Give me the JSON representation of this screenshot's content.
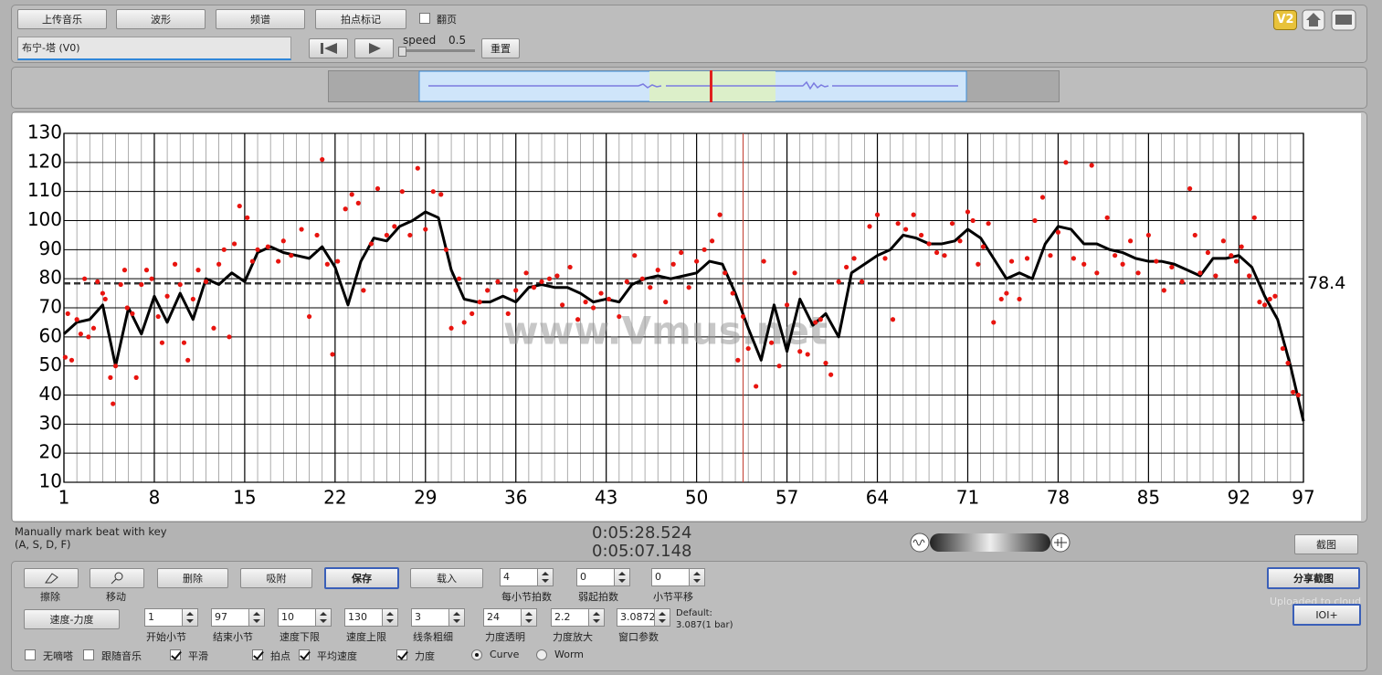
{
  "toolbar": {
    "buttons": [
      "上传音乐",
      "波形",
      "频谱",
      "拍点标记"
    ],
    "page_turn": "翻页",
    "track": "布宁-塔 (V0)",
    "speed_label": "speed",
    "speed": 0.5,
    "reset": "重置",
    "version": "V2"
  },
  "chart_data": {
    "type": "line",
    "xlim": [
      1,
      97
    ],
    "xticks": [
      1,
      8,
      15,
      22,
      29,
      36,
      43,
      50,
      57,
      64,
      71,
      78,
      85,
      92,
      97
    ],
    "xminorticks": [
      1,
      2,
      3,
      4,
      5,
      6,
      7,
      8,
      9,
      10,
      11,
      12,
      13,
      14,
      15,
      16,
      17,
      18,
      19,
      20,
      21,
      22,
      23,
      24,
      25,
      26,
      27,
      28,
      29,
      30,
      31,
      32,
      33,
      34,
      35,
      36,
      37,
      38,
      39,
      40,
      41,
      42,
      43,
      44,
      45,
      46,
      47,
      48,
      49,
      50,
      51,
      52,
      53,
      54,
      55,
      56,
      57,
      58,
      59,
      60,
      61,
      62,
      63,
      64,
      65,
      66,
      67,
      68,
      69,
      70,
      71,
      72,
      73,
      74,
      75,
      76,
      77,
      78,
      79,
      80,
      81,
      82,
      83,
      84,
      85,
      86,
      87,
      88,
      89,
      90,
      91,
      92,
      93,
      94,
      95,
      96,
      97
    ],
    "ylim": [
      10,
      130
    ],
    "yticks": [
      10,
      20,
      30,
      40,
      50,
      60,
      70,
      80,
      90,
      100,
      110,
      120,
      130
    ],
    "mean": 78.4,
    "cursor": 53.6,
    "watermark": "www.Vmus.net",
    "series": [
      {
        "type": "line",
        "color": "#000000",
        "x": [
          1,
          2,
          3,
          4,
          5,
          6,
          7,
          8,
          9,
          10,
          11,
          12,
          13,
          14,
          15,
          16,
          17,
          18,
          19,
          20,
          21,
          22,
          23,
          24,
          25,
          26,
          27,
          28,
          29,
          30,
          31,
          32,
          33,
          34,
          35,
          36,
          37,
          38,
          39,
          40,
          41,
          42,
          43,
          44,
          45,
          46,
          47,
          48,
          49,
          50,
          51,
          52,
          53,
          54,
          55,
          56,
          57,
          58,
          59,
          60,
          61,
          62,
          63,
          64,
          65,
          66,
          67,
          68,
          69,
          70,
          71,
          72,
          73,
          74,
          75,
          76,
          77,
          78,
          79,
          80,
          81,
          82,
          83,
          84,
          85,
          86,
          87,
          88,
          89,
          90,
          91,
          92,
          93,
          94,
          95,
          96,
          97
        ],
        "values": [
          61,
          65,
          66,
          71,
          50,
          70,
          61,
          74,
          65,
          75,
          66,
          80,
          78,
          82,
          79,
          89,
          91,
          89,
          88,
          87,
          91,
          84,
          71,
          86,
          94,
          93,
          98,
          100,
          103,
          101,
          83,
          73,
          72,
          72,
          74,
          72,
          77,
          78,
          77,
          77,
          75,
          72,
          73,
          72,
          78,
          80,
          81,
          80,
          81,
          82,
          86,
          85,
          75,
          63,
          52,
          71,
          55,
          73,
          64,
          68,
          60,
          82,
          85,
          88,
          90,
          95,
          94,
          92,
          92,
          93,
          97,
          94,
          87,
          80,
          82,
          80,
          92,
          98,
          97,
          92,
          92,
          90,
          89,
          87,
          86,
          86,
          85,
          83,
          81,
          87,
          87,
          88,
          84,
          74,
          66,
          50,
          31
        ]
      },
      {
        "type": "scatter",
        "color": "#e8140f",
        "x": [
          1.1,
          1.3,
          1.6,
          2,
          2.3,
          2.6,
          2.9,
          3.3,
          3.6,
          4,
          4.2,
          4.6,
          4.8,
          5,
          5.4,
          5.7,
          5.9,
          6.3,
          6.6,
          7,
          7.4,
          7.8,
          8.3,
          8.6,
          9,
          9.6,
          10,
          10.3,
          10.6,
          11,
          11.4,
          12,
          12.6,
          13,
          13.4,
          13.8,
          14.2,
          14.6,
          15.2,
          15.6,
          16,
          16.8,
          17.6,
          18,
          18.6,
          19.4,
          20,
          20.6,
          21,
          21.4,
          21.8,
          22.2,
          22.8,
          23.3,
          23.8,
          24.2,
          24.8,
          25.3,
          26,
          26.6,
          27.2,
          27.8,
          28.4,
          29,
          29.6,
          30.2,
          30.6,
          31,
          31.6,
          32,
          32.6,
          33.2,
          33.8,
          34.6,
          35.4,
          36,
          36.8,
          37.4,
          38,
          38.6,
          39.2,
          39.6,
          40.2,
          40.8,
          41.4,
          42,
          42.6,
          43.2,
          44,
          44.6,
          45.2,
          45.8,
          46.4,
          47,
          47.6,
          48.2,
          48.8,
          49.4,
          50,
          50.6,
          51.2,
          51.8,
          52.2,
          52.8,
          53.2,
          53.6,
          54,
          54.6,
          55.2,
          55.8,
          56.4,
          57,
          57.6,
          58,
          58.6,
          59.2,
          59.6,
          60,
          60.4,
          61,
          61.6,
          62.2,
          62.8,
          63.4,
          64,
          64.6,
          65.2,
          65.6,
          66.2,
          66.8,
          67.4,
          68,
          68.6,
          69.2,
          69.8,
          70.4,
          71,
          71.4,
          71.8,
          72.2,
          72.6,
          73,
          73.6,
          74,
          74.4,
          75,
          75.6,
          76.2,
          76.8,
          77.4,
          78,
          78.6,
          79.2,
          80,
          80.6,
          81,
          81.8,
          82.4,
          83,
          83.6,
          84.2,
          85,
          85.6,
          86.2,
          86.8,
          87.6,
          88.2,
          88.6,
          89,
          89.6,
          90.2,
          90.8,
          91.4,
          91.8,
          92.2,
          92.8,
          93.2,
          93.6,
          94,
          94.4,
          94.8,
          95.4,
          95.8,
          96.2,
          96.6
        ],
        "values": [
          53,
          68,
          52,
          66,
          61,
          80,
          60,
          63,
          79,
          75,
          73,
          46,
          37,
          50,
          78,
          83,
          70,
          68,
          46,
          78,
          83,
          80,
          67,
          58,
          74,
          85,
          78,
          58,
          52,
          73,
          83,
          79,
          63,
          85,
          90,
          60,
          92,
          105,
          101,
          86,
          90,
          91,
          86,
          93,
          88,
          97,
          67,
          95,
          121,
          85,
          54,
          86,
          104,
          109,
          106,
          76,
          92,
          111,
          95,
          98,
          110,
          95,
          118,
          97,
          110,
          109,
          90,
          63,
          80,
          65,
          68,
          72,
          76,
          79,
          68,
          76,
          82,
          77,
          79,
          80,
          81,
          71,
          84,
          66,
          72,
          70,
          75,
          73,
          67,
          79,
          88,
          80,
          77,
          83,
          72,
          85,
          89,
          77,
          86,
          90,
          93,
          102,
          82,
          75,
          52,
          67,
          56,
          43,
          86,
          58,
          50,
          71,
          82,
          55,
          54,
          65,
          66,
          51,
          47,
          79,
          84,
          87,
          79,
          98,
          102,
          87,
          66,
          99,
          97,
          102,
          95,
          92,
          89,
          88,
          99,
          93,
          103,
          100,
          85,
          91,
          99,
          65,
          73,
          75,
          86,
          73,
          87,
          100,
          108,
          88,
          96,
          120,
          87,
          85,
          119,
          82,
          101,
          88,
          85,
          93,
          82,
          95,
          86,
          76,
          84,
          79,
          111,
          95,
          82,
          89,
          81,
          93,
          88,
          86,
          91,
          81,
          101,
          72,
          71,
          73,
          74,
          56,
          51,
          41,
          40
        ]
      }
    ]
  },
  "status": {
    "hint": [
      "Manually mark beat with key",
      "(A, S, D, F)"
    ],
    "times": [
      "0:05:28.524",
      "0:05:07.148"
    ],
    "screenshot": "截图"
  },
  "controls": {
    "tools": [
      "擦除",
      "移动"
    ],
    "buttons": [
      "删除",
      "吸附",
      "保存",
      "载入"
    ],
    "spinners_row1": [
      {
        "value": 4,
        "label": "每小节拍数"
      },
      {
        "value": 0,
        "label": "弱起拍数"
      },
      {
        "value": 0,
        "label": "小节平移"
      }
    ],
    "tempo_dynamics": "速度-力度",
    "spinners_row2": [
      {
        "value": 1,
        "label": "开始小节"
      },
      {
        "value": 97,
        "label": "结束小节"
      },
      {
        "value": 10,
        "label": "速度下限"
      },
      {
        "value": 130,
        "label": "速度上限"
      },
      {
        "value": 3,
        "label": "线条粗细"
      },
      {
        "value": 24,
        "label": "力度透明"
      },
      {
        "value": 2.2,
        "label": "力度放大"
      },
      {
        "value": 3.0872,
        "label": "窗口参数"
      }
    ],
    "default_note": [
      "Default:",
      "3.087(1 bar)"
    ],
    "checkboxes": [
      {
        "label": "无嘀嗒",
        "checked": false
      },
      {
        "label": "跟随音乐",
        "checked": false
      },
      {
        "label": "平滑",
        "checked": true
      },
      {
        "label": "拍点",
        "checked": true
      },
      {
        "label": "平均速度",
        "checked": true
      },
      {
        "label": "力度",
        "checked": true
      }
    ],
    "radios": [
      {
        "label": "Curve",
        "selected": true
      },
      {
        "label": "Worm",
        "selected": false
      }
    ],
    "share": "分享截图",
    "uploaded": "Uploaded to cloud",
    "ioi": "IOI+"
  }
}
